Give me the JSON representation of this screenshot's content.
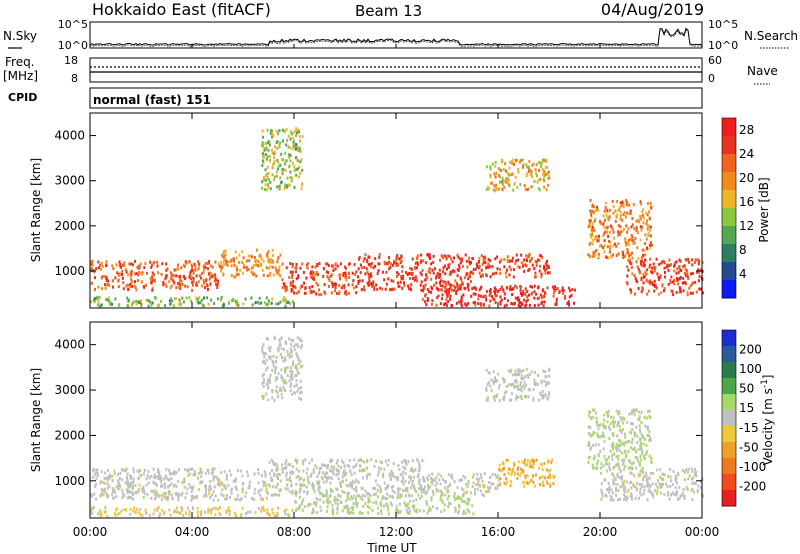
{
  "header": {
    "station": "Hokkaido East (fitACF)",
    "beam": "Beam 13",
    "date": "04/Aug/2019"
  },
  "noise_panel": {
    "left_label": "N.Sky",
    "right_label": "N.Search",
    "y_ticks": [
      "10^5",
      "10^0"
    ]
  },
  "freq_panel": {
    "left_label_top": "Freq.",
    "left_label_bottom": "[MHz]",
    "left_ticks": [
      "18",
      "8"
    ],
    "right_label": "Nave",
    "right_ticks": [
      "60",
      "0"
    ]
  },
  "cpid": {
    "label": "CPID",
    "mode": "normal (fast) 151"
  },
  "colors": {
    "power_scale": [
      "#0a1cf0",
      "#234a8c",
      "#2f7d62",
      "#53a653",
      "#8cc63e",
      "#f0b428",
      "#f08c1e",
      "#f0641e",
      "#e6321e",
      "#f01e1e"
    ],
    "velocity_scale": [
      "#1e2ad2",
      "#2b5a9a",
      "#2f7a4a",
      "#4fa64a",
      "#a6d86a",
      "#c0c0c0",
      "#f0c83c",
      "#f0a028",
      "#f07820",
      "#f04a1e",
      "#e61e1e"
    ]
  },
  "chart_data": [
    {
      "type": "heatmap",
      "title": "",
      "xlabel": "Time UT",
      "ylabel": "Slant Range [km]",
      "x_range": [
        "00:00",
        "00:00"
      ],
      "x_ticks": [
        "00:00",
        "04:00",
        "08:00",
        "12:00",
        "16:00",
        "20:00",
        "00:00"
      ],
      "y_range": [
        180,
        4500
      ],
      "y_ticks": [
        1000,
        2000,
        3000,
        4000
      ],
      "colorbar": {
        "label": "Power [dB]",
        "ticks": [
          4,
          8,
          12,
          16,
          20,
          24,
          28
        ],
        "range": [
          0,
          30
        ]
      },
      "echo_regions": [
        {
          "x0": 0.0,
          "x1": 5.0,
          "y0": 600,
          "y1": 1250,
          "value": 24
        },
        {
          "x0": 5.0,
          "x1": 7.5,
          "y0": 900,
          "y1": 1500,
          "value": 20
        },
        {
          "x0": 7.5,
          "x1": 10.5,
          "y0": 500,
          "y1": 1200,
          "value": 26
        },
        {
          "x0": 10.5,
          "x1": 15.0,
          "y0": 600,
          "y1": 1400,
          "value": 27
        },
        {
          "x0": 13.0,
          "x1": 19.0,
          "y0": 250,
          "y1": 700,
          "value": 29
        },
        {
          "x0": 15.0,
          "x1": 18.0,
          "y0": 900,
          "y1": 1400,
          "value": 26
        },
        {
          "x0": 21.0,
          "x1": 24.0,
          "y0": 500,
          "y1": 1300,
          "value": 26
        },
        {
          "x0": 0.0,
          "x1": 8.0,
          "y0": 250,
          "y1": 450,
          "value": 12
        },
        {
          "x0": 6.7,
          "x1": 8.3,
          "y0": 2800,
          "y1": 4200,
          "value": 13
        },
        {
          "x0": 19.5,
          "x1": 22.0,
          "y0": 1300,
          "y1": 2600,
          "value": 21
        },
        {
          "x0": 15.5,
          "x1": 18.0,
          "y0": 2800,
          "y1": 3500,
          "value": 18
        }
      ]
    },
    {
      "type": "heatmap",
      "title": "",
      "xlabel": "Time UT",
      "ylabel": "Slant Range [km]",
      "x_range": [
        "00:00",
        "00:00"
      ],
      "x_ticks": [
        "00:00",
        "04:00",
        "08:00",
        "12:00",
        "16:00",
        "20:00",
        "00:00"
      ],
      "y_range": [
        180,
        4500
      ],
      "y_ticks": [
        1000,
        2000,
        3000,
        4000
      ],
      "colorbar": {
        "label": "Velocity [m s^-1]",
        "ticks": [
          200,
          100,
          50,
          15,
          -15,
          -50,
          -100,
          -200
        ],
        "range": [
          -250,
          250
        ]
      },
      "echo_regions": [
        {
          "x0": 0.0,
          "x1": 7.0,
          "y0": 600,
          "y1": 1300,
          "value": 0
        },
        {
          "x0": 7.0,
          "x1": 13.0,
          "y0": 700,
          "y1": 1500,
          "value": 5
        },
        {
          "x0": 13.0,
          "x1": 16.0,
          "y0": 700,
          "y1": 1200,
          "value": 0
        },
        {
          "x0": 16.0,
          "x1": 18.2,
          "y0": 900,
          "y1": 1500,
          "value": -80
        },
        {
          "x0": 20.0,
          "x1": 24.0,
          "y0": 600,
          "y1": 1300,
          "value": 0
        },
        {
          "x0": 8.0,
          "x1": 15.0,
          "y0": 300,
          "y1": 700,
          "value": 30
        },
        {
          "x0": 0.0,
          "x1": 8.0,
          "y0": 250,
          "y1": 450,
          "value": -30
        },
        {
          "x0": 6.7,
          "x1": 8.3,
          "y0": 2800,
          "y1": 4200,
          "value": 5
        },
        {
          "x0": 15.5,
          "x1": 18.0,
          "y0": 2800,
          "y1": 3500,
          "value": 5
        },
        {
          "x0": 19.5,
          "x1": 22.0,
          "y0": 1300,
          "y1": 2600,
          "value": 30
        }
      ]
    }
  ]
}
